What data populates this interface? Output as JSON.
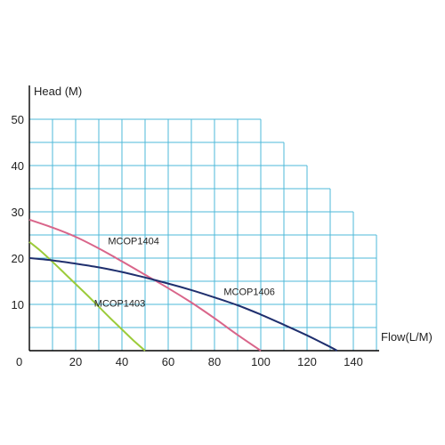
{
  "chart_data": {
    "type": "line",
    "title": "",
    "ylabel": "Head (M)",
    "xlabel": "Flow(L/M)",
    "xlim": [
      0,
      150
    ],
    "ylim": [
      0,
      50
    ],
    "x_ticks": [
      0,
      20,
      40,
      60,
      80,
      100,
      120,
      140
    ],
    "x_tick_labels": [
      "0",
      "20",
      "40",
      "60",
      "80",
      "100",
      "120",
      "140"
    ],
    "y_ticks": [
      10,
      20,
      30,
      40,
      50
    ],
    "y_tick_labels": [
      "10",
      "20",
      "30",
      "40",
      "50"
    ],
    "grid": true,
    "grid_color": "#4db8d8",
    "grid_step_x": 10,
    "grid_step_y": 5,
    "grid_outline": [
      [
        0,
        50
      ],
      [
        100,
        50
      ],
      [
        100,
        45
      ],
      [
        110,
        45
      ],
      [
        110,
        40
      ],
      [
        120,
        40
      ],
      [
        120,
        35
      ],
      [
        130,
        35
      ],
      [
        130,
        30
      ],
      [
        140,
        30
      ],
      [
        140,
        25
      ],
      [
        150,
        25
      ],
      [
        150,
        0
      ]
    ],
    "legend": "none",
    "series": [
      {
        "name": "MCOP1403",
        "color": "#9ccb3a",
        "label_at": [
          28,
          9.5
        ],
        "x": [
          0,
          5,
          10,
          15,
          20,
          25,
          30,
          35,
          40,
          45,
          50
        ],
        "y": [
          23.5,
          21.5,
          19.2,
          16.8,
          14.4,
          12.0,
          9.5,
          7.0,
          4.6,
          2.2,
          0
        ]
      },
      {
        "name": "MCOP1404",
        "color": "#d9658a",
        "label_at": [
          34,
          23
        ],
        "x": [
          0,
          10,
          20,
          30,
          40,
          50,
          60,
          70,
          80,
          90,
          100
        ],
        "y": [
          28.3,
          26.6,
          24.6,
          22.1,
          19.3,
          16.4,
          13.5,
          10.4,
          7.0,
          3.4,
          0
        ]
      },
      {
        "name": "MCOP1406",
        "color": "#1f2f6e",
        "label_at": [
          84,
          12
        ],
        "x": [
          0,
          10,
          20,
          30,
          40,
          50,
          60,
          70,
          80,
          90,
          100,
          110,
          120,
          130,
          133
        ],
        "y": [
          20.0,
          19.5,
          18.8,
          18.0,
          17.0,
          15.8,
          14.5,
          13.1,
          11.5,
          9.8,
          7.8,
          5.6,
          3.3,
          0.8,
          0
        ]
      }
    ]
  }
}
